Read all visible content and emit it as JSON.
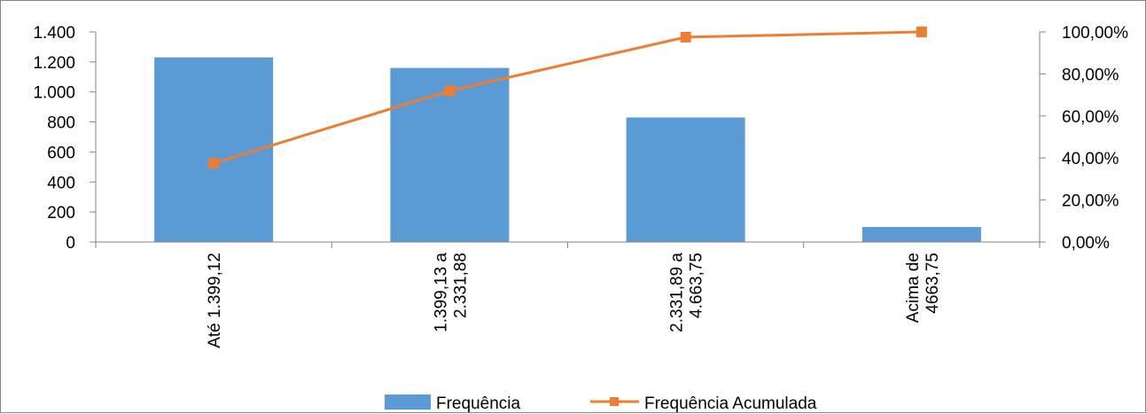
{
  "chart_data": {
    "type": "bar",
    "categories": [
      [
        "Até 1.399,12"
      ],
      [
        "1.399,13 a",
        "2.331,88"
      ],
      [
        "2.331,89 a",
        "4.663,75"
      ],
      [
        "Acima de",
        "4663,75"
      ]
    ],
    "series": [
      {
        "name": "Frequência",
        "type": "bar",
        "axis": "left",
        "values": [
          1230,
          1160,
          830,
          100
        ]
      },
      {
        "name": "Frequência Acumulada",
        "type": "line",
        "axis": "right",
        "values": [
          0.375,
          0.72,
          0.975,
          1.0
        ]
      }
    ],
    "y_left": {
      "ylim": [
        0,
        1400
      ],
      "ticks": [
        0,
        200,
        400,
        600,
        800,
        1000,
        1200,
        1400
      ],
      "tick_labels": [
        "0",
        "200",
        "400",
        "600",
        "800",
        "1.000",
        "1.200",
        "1.400"
      ]
    },
    "y_right": {
      "ylim": [
        0,
        1.0
      ],
      "ticks": [
        0,
        0.2,
        0.4,
        0.6,
        0.8,
        1.0
      ],
      "tick_labels": [
        "0,00%",
        "20,00%",
        "40,00%",
        "60,00%",
        "80,00%",
        "100,00%"
      ]
    },
    "legend_position": "bottom",
    "grid": false,
    "colors": {
      "bar": "#5B9BD5",
      "line": "#ED7D31",
      "axis": "#868686"
    }
  }
}
